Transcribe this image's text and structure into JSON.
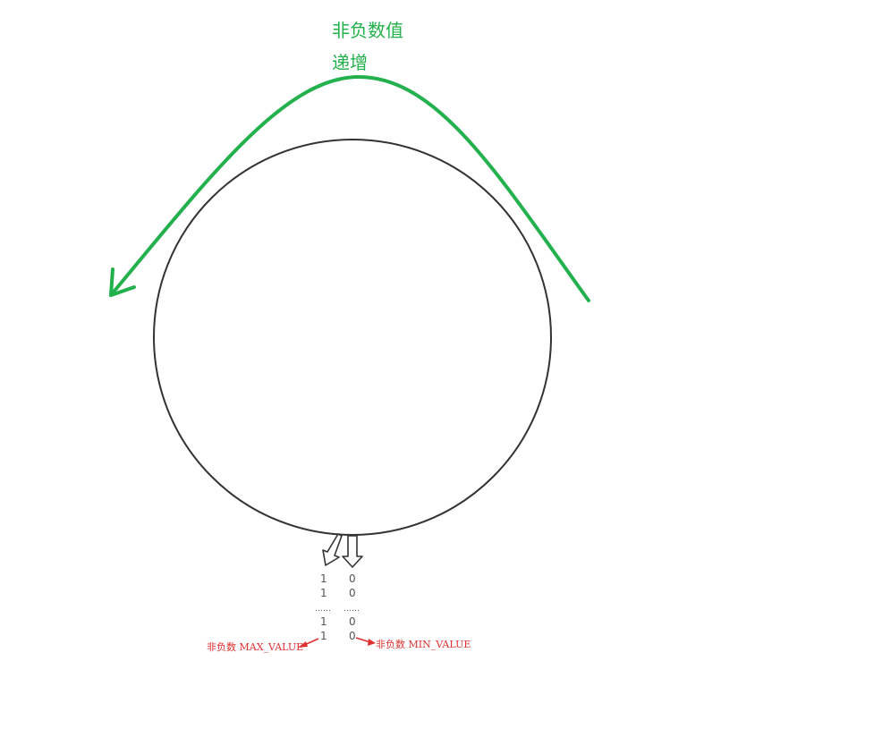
{
  "direction_label": {
    "line1": "非负数值",
    "line2": "递增",
    "color": "#22b14c"
  },
  "bit_columns": {
    "left": [
      "1",
      "1",
      "……",
      "1",
      "1"
    ],
    "right": [
      "0",
      "0",
      "……",
      "0",
      "0"
    ]
  },
  "annotations": {
    "max_label": "非负数 MAX_VALUE",
    "min_label": "非负数 MIN_VALUE",
    "color": "#e03030"
  },
  "colors": {
    "circle_stroke": "#333333",
    "text": "#555555"
  }
}
